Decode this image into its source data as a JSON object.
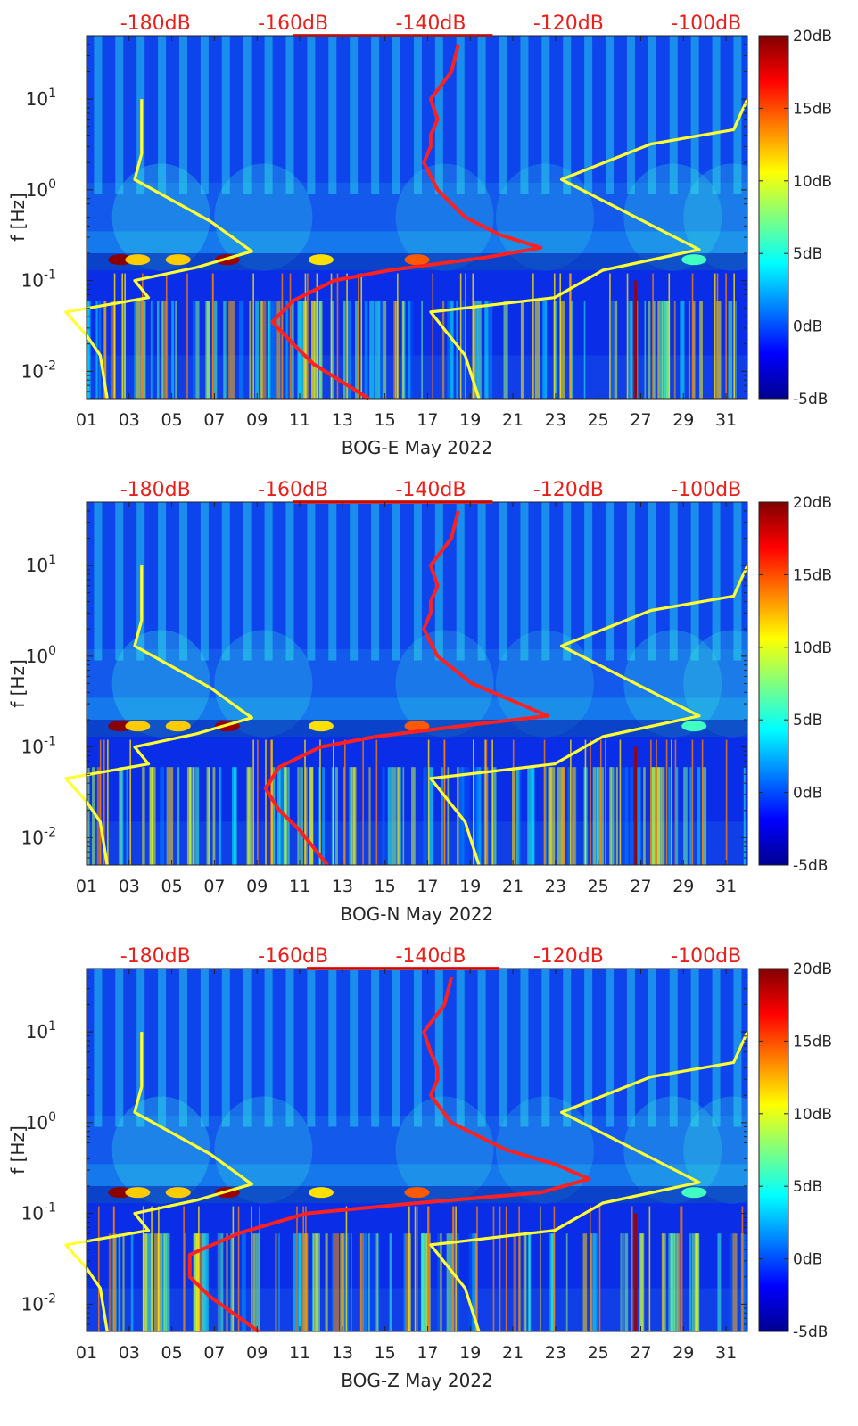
{
  "chart_data": [
    {
      "type": "heatmap",
      "station": "BOG-E",
      "xlabel": "BOG-E May 2022",
      "ylabel": "f [Hz]",
      "x_ticks": [
        "01",
        "03",
        "05",
        "07",
        "09",
        "11",
        "13",
        "15",
        "17",
        "19",
        "21",
        "23",
        "25",
        "27",
        "29",
        "31"
      ],
      "x_range_days": [
        1,
        32
      ],
      "y_ticks": [
        "10^-2",
        "10^-1",
        "10^0",
        "10^1"
      ],
      "y_scale": "log",
      "y_range_hz": [
        0.005,
        50
      ],
      "top_axis_ticks": [
        "-180dB",
        "-160dB",
        "-140dB",
        "-120dB",
        "-100dB"
      ],
      "top_axis_range_db": [
        -190,
        -94
      ],
      "colorbar_ticks": [
        "20dB",
        "15dB",
        "10dB",
        "5dB",
        "0dB",
        "-5dB"
      ],
      "colorbar_range_db": [
        -5,
        20
      ],
      "microseism_peak_hz": 0.17,
      "series": [
        {
          "name": "",
          "color": "#ffff33",
          "points": [
            [
              -182,
              10
            ],
            [
              -182,
              2.5
            ],
            [
              -183,
              1.3
            ],
            [
              -172,
              0.45
            ],
            [
              -166,
              0.21
            ],
            [
              -174,
              0.14
            ],
            [
              -183,
              0.1
            ],
            [
              -181,
              0.065
            ],
            [
              -193,
              0.045
            ],
            [
              -190,
              0.025
            ],
            [
              -188,
              0.015
            ],
            [
              -187,
              0.005
            ]
          ]
        },
        {
          "name": "",
          "color": "#ffff33",
          "points": [
            [
              -94,
              10
            ],
            [
              -96,
              4.6
            ],
            [
              -108,
              3.2
            ],
            [
              -121,
              1.3
            ],
            [
              -101,
              0.22
            ],
            [
              -115,
              0.13
            ],
            [
              -122,
              0.065
            ],
            [
              -140,
              0.045
            ],
            [
              -135,
              0.015
            ],
            [
              -133,
              0.005
            ]
          ]
        },
        {
          "name": "",
          "color": "#ff2020",
          "points": [
            [
              -136,
              40
            ],
            [
              -137,
              20
            ],
            [
              -140,
              10
            ],
            [
              -139,
              6
            ],
            [
              -140,
              4
            ],
            [
              -140,
              3
            ],
            [
              -141,
              2
            ],
            [
              -139,
              1
            ],
            [
              -135,
              0.5
            ],
            [
              -130,
              0.32
            ],
            [
              -124,
              0.23
            ],
            [
              -132,
              0.18
            ],
            [
              -146,
              0.13
            ],
            [
              -154,
              0.1
            ],
            [
              -160,
              0.06
            ],
            [
              -163,
              0.035
            ],
            [
              -160,
              0.02
            ],
            [
              -157,
              0.012
            ],
            [
              -149,
              0.005
            ]
          ]
        },
        {
          "name": "",
          "color": "#ff2020",
          "points": [
            [
              -160,
              50
            ],
            [
              -131,
              50
            ]
          ]
        }
      ]
    },
    {
      "type": "heatmap",
      "station": "BOG-N",
      "xlabel": "BOG-N May 2022",
      "ylabel": "f [Hz]",
      "x_ticks": [
        "01",
        "03",
        "05",
        "07",
        "09",
        "11",
        "13",
        "15",
        "17",
        "19",
        "21",
        "23",
        "25",
        "27",
        "29",
        "31"
      ],
      "x_range_days": [
        1,
        32
      ],
      "y_ticks": [
        "10^-2",
        "10^-1",
        "10^0",
        "10^1"
      ],
      "y_scale": "log",
      "y_range_hz": [
        0.005,
        50
      ],
      "top_axis_ticks": [
        "-180dB",
        "-160dB",
        "-140dB",
        "-120dB",
        "-100dB"
      ],
      "top_axis_range_db": [
        -190,
        -94
      ],
      "colorbar_ticks": [
        "20dB",
        "15dB",
        "10dB",
        "5dB",
        "0dB",
        "-5dB"
      ],
      "colorbar_range_db": [
        -5,
        20
      ],
      "microseism_peak_hz": 0.17,
      "series": [
        {
          "name": "",
          "color": "#ffff33",
          "points": [
            [
              -182,
              10
            ],
            [
              -182,
              2.5
            ],
            [
              -183,
              1.3
            ],
            [
              -172,
              0.45
            ],
            [
              -166,
              0.21
            ],
            [
              -174,
              0.14
            ],
            [
              -183,
              0.1
            ],
            [
              -181,
              0.065
            ],
            [
              -193,
              0.045
            ],
            [
              -190,
              0.025
            ],
            [
              -188,
              0.015
            ],
            [
              -187,
              0.005
            ]
          ]
        },
        {
          "name": "",
          "color": "#ffff33",
          "points": [
            [
              -94,
              10
            ],
            [
              -96,
              4.6
            ],
            [
              -108,
              3.2
            ],
            [
              -121,
              1.3
            ],
            [
              -101,
              0.22
            ],
            [
              -115,
              0.13
            ],
            [
              -122,
              0.065
            ],
            [
              -140,
              0.045
            ],
            [
              -135,
              0.015
            ],
            [
              -133,
              0.005
            ]
          ]
        },
        {
          "name": "",
          "color": "#ff2020",
          "points": [
            [
              -136,
              40
            ],
            [
              -137,
              20
            ],
            [
              -140,
              10
            ],
            [
              -139,
              6
            ],
            [
              -140,
              4
            ],
            [
              -140,
              3
            ],
            [
              -141,
              2
            ],
            [
              -139,
              1
            ],
            [
              -134,
              0.5
            ],
            [
              -128,
              0.32
            ],
            [
              -123,
              0.22
            ],
            [
              -133,
              0.18
            ],
            [
              -148,
              0.13
            ],
            [
              -156,
              0.1
            ],
            [
              -162,
              0.06
            ],
            [
              -164,
              0.035
            ],
            [
              -162,
              0.02
            ],
            [
              -159,
              0.012
            ],
            [
              -155,
              0.005
            ]
          ]
        },
        {
          "name": "",
          "color": "#ff2020",
          "points": [
            [
              -160,
              50
            ],
            [
              -131,
              50
            ]
          ]
        }
      ]
    },
    {
      "type": "heatmap",
      "station": "BOG-Z",
      "xlabel": "BOG-Z May 2022",
      "ylabel": "f [Hz]",
      "x_ticks": [
        "01",
        "03",
        "05",
        "07",
        "09",
        "11",
        "13",
        "15",
        "17",
        "19",
        "21",
        "23",
        "25",
        "27",
        "29",
        "31"
      ],
      "x_range_days": [
        1,
        32
      ],
      "y_ticks": [
        "10^-2",
        "10^-1",
        "10^0",
        "10^1"
      ],
      "y_scale": "log",
      "y_range_hz": [
        0.005,
        50
      ],
      "top_axis_ticks": [
        "-180dB",
        "-160dB",
        "-140dB",
        "-120dB",
        "-100dB"
      ],
      "top_axis_range_db": [
        -190,
        -94
      ],
      "colorbar_ticks": [
        "20dB",
        "15dB",
        "10dB",
        "5dB",
        "0dB",
        "-5dB"
      ],
      "colorbar_range_db": [
        -5,
        20
      ],
      "microseism_peak_hz": 0.17,
      "series": [
        {
          "name": "",
          "color": "#ffff33",
          "points": [
            [
              -182,
              10
            ],
            [
              -182,
              2.5
            ],
            [
              -183,
              1.3
            ],
            [
              -172,
              0.45
            ],
            [
              -166,
              0.21
            ],
            [
              -174,
              0.14
            ],
            [
              -183,
              0.1
            ],
            [
              -181,
              0.065
            ],
            [
              -193,
              0.045
            ],
            [
              -190,
              0.025
            ],
            [
              -188,
              0.015
            ],
            [
              -187,
              0.005
            ]
          ]
        },
        {
          "name": "",
          "color": "#ffff33",
          "points": [
            [
              -94,
              10
            ],
            [
              -96,
              4.6
            ],
            [
              -108,
              3.2
            ],
            [
              -121,
              1.3
            ],
            [
              -101,
              0.22
            ],
            [
              -115,
              0.13
            ],
            [
              -122,
              0.065
            ],
            [
              -140,
              0.045
            ],
            [
              -135,
              0.015
            ],
            [
              -133,
              0.005
            ]
          ]
        },
        {
          "name": "",
          "color": "#ff2020",
          "points": [
            [
              -137,
              40
            ],
            [
              -138,
              20
            ],
            [
              -141,
              10
            ],
            [
              -140,
              6
            ],
            [
              -139,
              4
            ],
            [
              -139,
              3
            ],
            [
              -140,
              2
            ],
            [
              -137,
              1
            ],
            [
              -129,
              0.5
            ],
            [
              -122,
              0.35
            ],
            [
              -117,
              0.24
            ],
            [
              -124,
              0.17
            ],
            [
              -142,
              0.13
            ],
            [
              -158,
              0.1
            ],
            [
              -168,
              0.06
            ],
            [
              -175,
              0.035
            ],
            [
              -175,
              0.02
            ],
            [
              -172,
              0.012
            ],
            [
              -165,
              0.005
            ]
          ]
        },
        {
          "name": "",
          "color": "#ff2020",
          "points": [
            [
              -158,
              50
            ],
            [
              -130,
              50
            ]
          ]
        }
      ]
    }
  ]
}
